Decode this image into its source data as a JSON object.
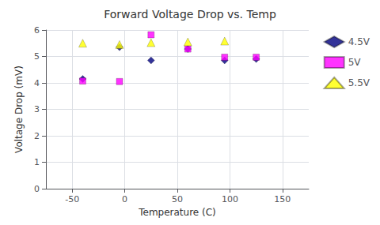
{
  "chart_data": {
    "type": "scatter",
    "title": "Forward Voltage Drop vs. Temp",
    "xlabel": "Temperature (C)",
    "ylabel": "Voltage Drop (mV)",
    "xlim": [
      -75,
      175
    ],
    "ylim": [
      0,
      6
    ],
    "xticks": [
      -50,
      0,
      50,
      100,
      150
    ],
    "yticks": [
      0,
      1,
      2,
      3,
      4,
      5,
      6
    ],
    "grid": true,
    "legend": "right",
    "series": [
      {
        "name": "4.5V",
        "marker": "diamond",
        "color": "#000080",
        "x": [
          -40,
          -5,
          25,
          60,
          95,
          125
        ],
        "values": [
          4.15,
          5.35,
          4.85,
          5.28,
          4.85,
          4.9
        ]
      },
      {
        "name": "5V",
        "marker": "square",
        "color": "#FF00FF",
        "x": [
          -40,
          -5,
          25,
          60,
          95,
          125
        ],
        "values": [
          4.07,
          4.05,
          5.82,
          5.28,
          4.97,
          4.97
        ]
      },
      {
        "name": "5.5V",
        "marker": "triangle",
        "color": "#FFFF00",
        "x": [
          -40,
          -5,
          25,
          60,
          95
        ],
        "values": [
          5.5,
          5.45,
          5.52,
          5.55,
          5.58
        ]
      }
    ]
  }
}
